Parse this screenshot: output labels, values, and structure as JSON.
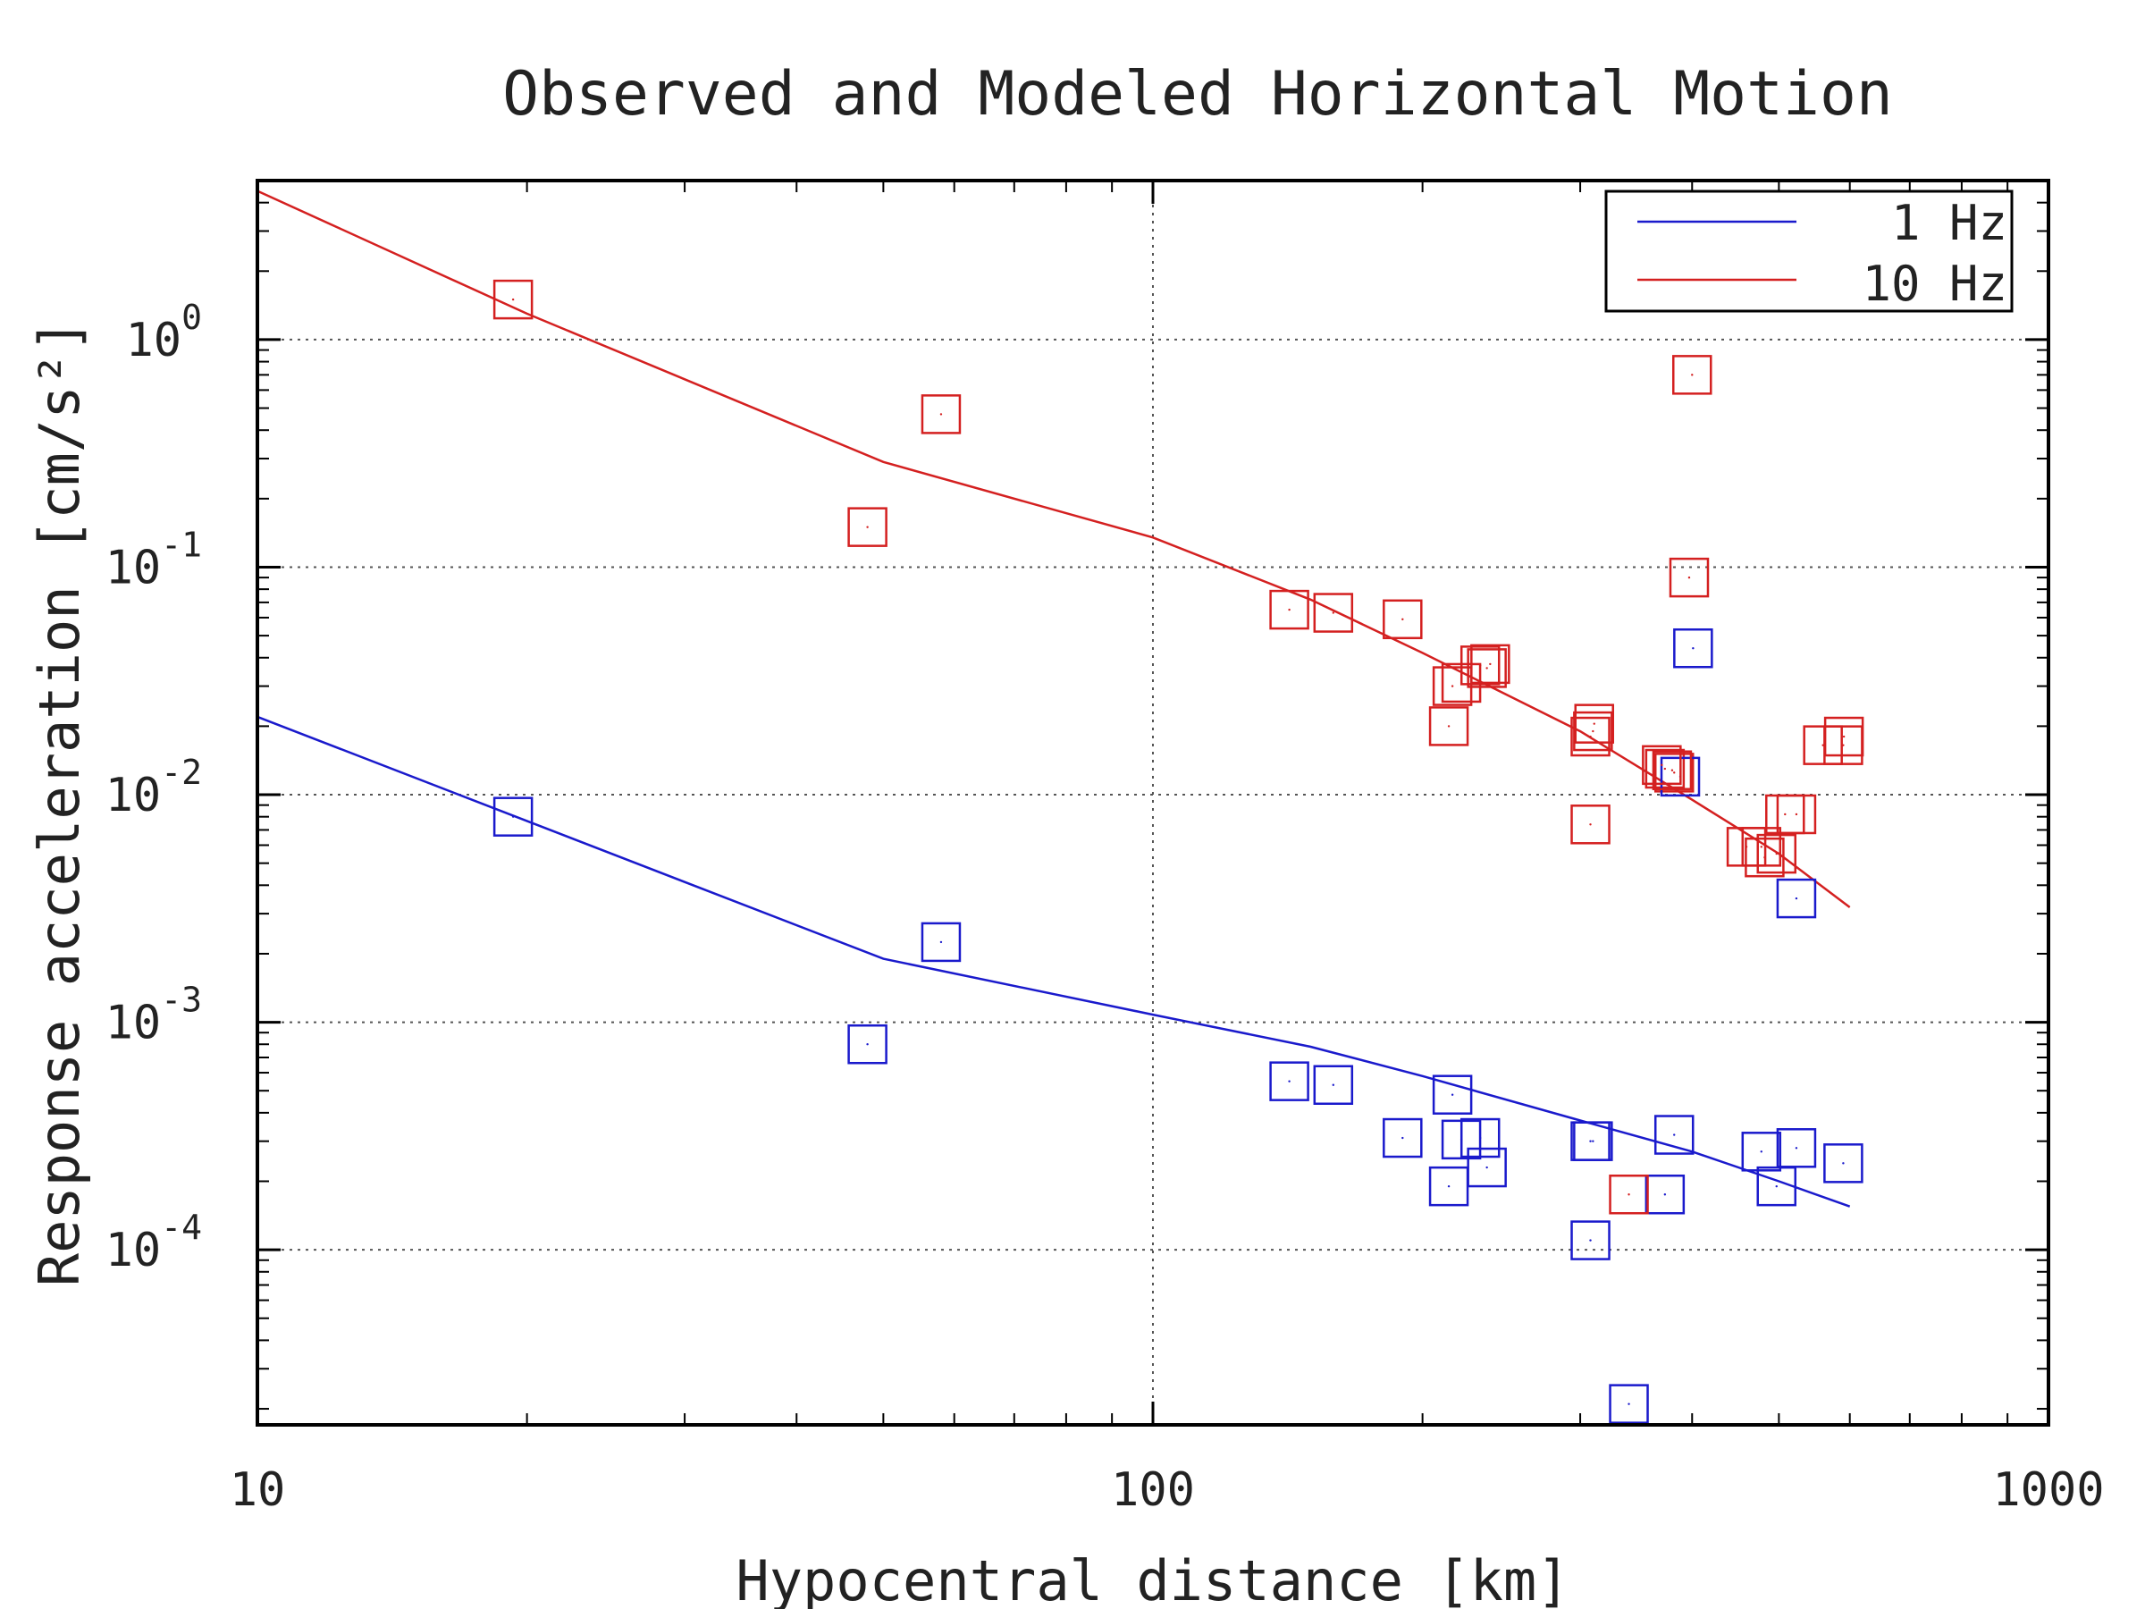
{
  "chart_data": {
    "type": "scatter",
    "title": "Observed and Modeled Horizontal Motion",
    "xlabel": "Hypocentral distance [km]",
    "ylabel": "Response acceleration [cm/s²]",
    "xscale": "log",
    "yscale": "log",
    "xlim": [
      10,
      1000
    ],
    "ylim": [
      1.7e-05,
      5.0
    ],
    "x_ticks": [
      "10",
      "100",
      "1000"
    ],
    "y_ticks": [
      {
        "base": "10",
        "exp": "0",
        "value": 1
      },
      {
        "base": "10",
        "exp": "-1",
        "value": 0.1
      },
      {
        "base": "10",
        "exp": "-2",
        "value": 0.01
      },
      {
        "base": "10",
        "exp": "-3",
        "value": 0.001
      },
      {
        "base": "10",
        "exp": "-4",
        "value": 0.0001
      }
    ],
    "grid": true,
    "legend_position": "top-right",
    "legend": [
      {
        "label": "1 Hz",
        "color": "#1a1acc"
      },
      {
        "label": "10 Hz",
        "color": "#d42020"
      }
    ],
    "series": [
      {
        "name": "1 Hz",
        "color": "#1a1acc",
        "model": {
          "x": [
            10,
            50,
            100,
            150,
            200,
            300,
            400,
            500,
            600
          ],
          "y": [
            0.022,
            0.0019,
            0.00108,
            0.00078,
            0.00058,
            0.00037,
            0.00027,
            0.0002,
            0.000155
          ]
        },
        "observed": {
          "x": [
            19.3,
            48,
            58,
            142,
            159,
            190,
            216,
            214,
            232,
            221,
            236,
            310,
            308,
            308,
            340,
            373,
            382,
            478,
            497,
            523,
            590
          ],
          "y": [
            0.008,
            0.0008,
            0.00225,
            0.00055,
            0.00053,
            0.00031,
            0.00048,
            0.00019,
            0.00031,
            0.000305,
            0.00023,
            0.0003,
            0.0003,
            0.00011,
            2.1e-05,
            0.000175,
            0.00032,
            0.00027,
            0.00019,
            0.00028,
            0.00024
          ]
        }
      },
      {
        "name": "10 Hz",
        "color": "#d42020",
        "model": {
          "x": [
            10,
            20,
            50,
            100,
            150,
            200,
            300,
            400,
            500,
            600
          ],
          "y": [
            4.5,
            1.3,
            0.29,
            0.135,
            0.072,
            0.042,
            0.019,
            0.0095,
            0.0055,
            0.0032
          ]
        },
        "observed": {
          "x": [
            19.3,
            48,
            58,
            142,
            159,
            190,
            216,
            214,
            232,
            221,
            236,
            310,
            308,
            308,
            340,
            373,
            382,
            478,
            497,
            523,
            590
          ],
          "y": [
            1.5,
            0.15,
            0.47,
            0.065,
            0.063,
            0.059,
            0.03,
            0.02,
            0.037,
            0.031,
            0.036,
            0.019,
            0.018,
            0.0074,
            0.000175,
            0.013,
            0.0125,
            0.0059,
            0.0055,
            0.0082,
            0.0165
          ]
        }
      }
    ],
    "extra_points": [
      {
        "series": "10 Hz",
        "x": 397,
        "y": 0.09
      },
      {
        "series": "10 Hz",
        "x": 400,
        "y": 0.7
      },
      {
        "series": "1 Hz",
        "x": 401,
        "y": 0.044
      },
      {
        "series": "1 Hz",
        "x": 388,
        "y": 0.012
      },
      {
        "series": "1 Hz",
        "x": 523,
        "y": 0.0035
      },
      {
        "series": "10 Hz",
        "x": 560,
        "y": 0.0165
      },
      {
        "series": "10 Hz",
        "x": 591,
        "y": 0.018
      },
      {
        "series": "10 Hz",
        "x": 460,
        "y": 0.0059
      },
      {
        "series": "10 Hz",
        "x": 482,
        "y": 0.0053
      },
      {
        "series": "10 Hz",
        "x": 508,
        "y": 0.0082
      },
      {
        "series": "10 Hz",
        "x": 370,
        "y": 0.0135
      },
      {
        "series": "10 Hz",
        "x": 380,
        "y": 0.0128
      },
      {
        "series": "10 Hz",
        "x": 311,
        "y": 0.0205
      },
      {
        "series": "10 Hz",
        "x": 238,
        "y": 0.0375
      }
    ]
  }
}
